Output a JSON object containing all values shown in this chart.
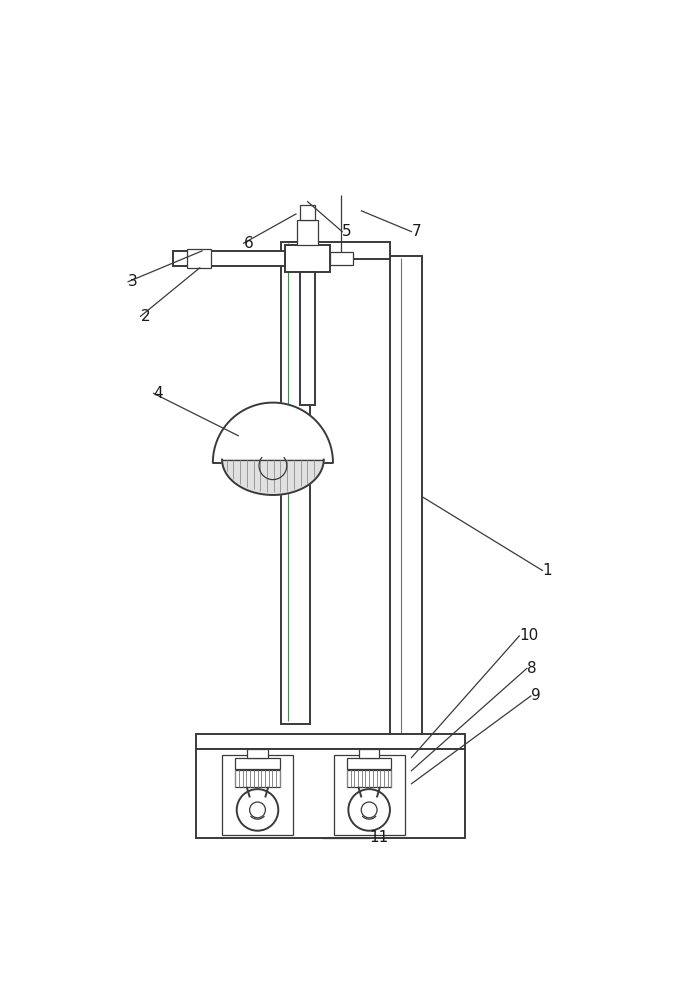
{
  "bg_color": "#ffffff",
  "lc": "#3a3a3a",
  "lc_green": "#4a8a55",
  "lw_main": 1.4,
  "lw_thin": 0.9,
  "lw_wire": 0.8,
  "fig_w": 6.91,
  "fig_h": 10.0,
  "dpi": 100,
  "label_fs": 11,
  "label_color": "#1a1a1a"
}
